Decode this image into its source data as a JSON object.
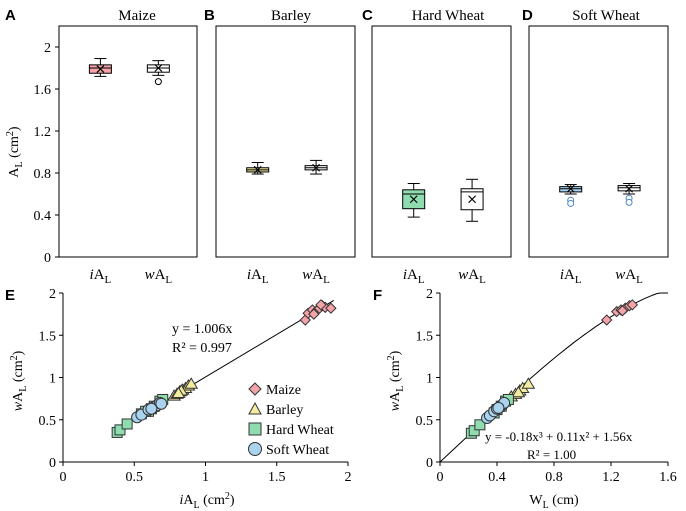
{
  "chart_data": [
    {
      "panel": "A",
      "type": "box",
      "title": "Maize",
      "ylabel": "A_L (cm2)",
      "ylim": [
        0,
        2.2
      ],
      "yticks": [
        "0",
        "0.4",
        "0.8",
        "1.2",
        "1.6",
        "2"
      ],
      "fill": "#f4a3a8",
      "boxes": [
        {
          "label_italic": "i",
          "label": "A",
          "sub": "L",
          "min": 1.72,
          "q1": 1.75,
          "median": 1.8,
          "q3": 1.83,
          "max": 1.89,
          "mean": 1.79,
          "outliers": []
        },
        {
          "label_italic": "w",
          "label": "A",
          "sub": "L",
          "min": 1.73,
          "q1": 1.76,
          "median": 1.8,
          "q3": 1.83,
          "max": 1.87,
          "mean": 1.8,
          "outliers": [
            1.67
          ]
        }
      ]
    },
    {
      "panel": "B",
      "type": "box",
      "title": "Barley",
      "ylim": [
        0,
        2.2
      ],
      "fill": "#f1eca0",
      "boxes": [
        {
          "label_italic": "i",
          "label": "A",
          "sub": "L",
          "min": 0.79,
          "q1": 0.81,
          "median": 0.83,
          "q3": 0.85,
          "max": 0.9,
          "mean": 0.83,
          "outliers": []
        },
        {
          "label_italic": "w",
          "label": "A",
          "sub": "L",
          "min": 0.79,
          "q1": 0.83,
          "median": 0.85,
          "q3": 0.87,
          "max": 0.92,
          "mean": 0.85,
          "outliers": []
        }
      ]
    },
    {
      "panel": "C",
      "type": "box",
      "title": "Hard Wheat",
      "ylim": [
        0,
        2.2
      ],
      "fill": "#8fdcb0",
      "boxes": [
        {
          "label_italic": "i",
          "label": "A",
          "sub": "L",
          "min": 0.38,
          "q1": 0.46,
          "median": 0.6,
          "q3": 0.64,
          "max": 0.7,
          "mean": 0.55,
          "outliers": []
        },
        {
          "label_italic": "w",
          "label": "A",
          "sub": "L",
          "min": 0.34,
          "q1": 0.45,
          "median": 0.62,
          "q3": 0.65,
          "max": 0.74,
          "mean": 0.55,
          "outliers": []
        }
      ]
    },
    {
      "panel": "D",
      "type": "box",
      "title": "Soft Wheat",
      "ylim": [
        0,
        2.2
      ],
      "fill": "#a9d3ef",
      "boxes": [
        {
          "label_italic": "i",
          "label": "A",
          "sub": "L",
          "min": 0.6,
          "q1": 0.62,
          "median": 0.65,
          "q3": 0.67,
          "max": 0.69,
          "mean": 0.65,
          "outliers": [
            0.54,
            0.51
          ]
        },
        {
          "label_italic": "w",
          "label": "A",
          "sub": "L",
          "min": 0.6,
          "q1": 0.63,
          "median": 0.66,
          "q3": 0.68,
          "max": 0.7,
          "mean": 0.65,
          "outliers": [
            0.56,
            0.52
          ]
        }
      ]
    },
    {
      "panel": "E",
      "type": "scatter",
      "xlabel": "iA_L (cm2)",
      "ylabel": "wA_L (cm2)",
      "xlim": [
        0,
        2
      ],
      "ylim": [
        0,
        2
      ],
      "xticks": [
        "0",
        "0.5",
        "1",
        "1.5",
        "2"
      ],
      "yticks": [
        "0",
        "0.5",
        "1",
        "1.5",
        "2"
      ],
      "fit_line": {
        "slope": 1.006,
        "x_range": [
          0.38,
          1.9
        ]
      },
      "equation": "y = 1.006x",
      "r2": "R² = 0.997",
      "series": [
        {
          "name": "Maize",
          "marker": "diamond",
          "color": "#f4a3a8",
          "points": [
            [
              1.7,
              1.68
            ],
            [
              1.72,
              1.76
            ],
            [
              1.75,
              1.8
            ],
            [
              1.78,
              1.79
            ],
            [
              1.8,
              1.82
            ],
            [
              1.82,
              1.85
            ],
            [
              1.84,
              1.83
            ],
            [
              1.88,
              1.82
            ],
            [
              1.76,
              1.75
            ],
            [
              1.81,
              1.86
            ]
          ]
        },
        {
          "name": "Barley",
          "marker": "triangle",
          "color": "#f1eca0",
          "points": [
            [
              0.78,
              0.78
            ],
            [
              0.8,
              0.8
            ],
            [
              0.82,
              0.83
            ],
            [
              0.84,
              0.85
            ],
            [
              0.86,
              0.87
            ],
            [
              0.88,
              0.9
            ],
            [
              0.9,
              0.92
            ],
            [
              0.83,
              0.84
            ],
            [
              0.81,
              0.81
            ]
          ]
        },
        {
          "name": "Hard Wheat",
          "marker": "square",
          "color": "#8fdcb0",
          "points": [
            [
              0.38,
              0.35
            ],
            [
              0.4,
              0.38
            ],
            [
              0.45,
              0.45
            ],
            [
              0.55,
              0.57
            ],
            [
              0.6,
              0.6
            ],
            [
              0.62,
              0.63
            ],
            [
              0.64,
              0.66
            ],
            [
              0.68,
              0.72
            ],
            [
              0.7,
              0.74
            ],
            [
              0.58,
              0.6
            ]
          ]
        },
        {
          "name": "Soft Wheat",
          "marker": "circle",
          "color": "#a9d3ef",
          "points": [
            [
              0.52,
              0.53
            ],
            [
              0.55,
              0.56
            ],
            [
              0.6,
              0.62
            ],
            [
              0.63,
              0.64
            ],
            [
              0.65,
              0.66
            ],
            [
              0.66,
              0.67
            ],
            [
              0.68,
              0.7
            ],
            [
              0.69,
              0.69
            ],
            [
              0.62,
              0.63
            ]
          ]
        }
      ]
    },
    {
      "panel": "F",
      "type": "scatter",
      "xlabel": "W_L (cm)",
      "ylabel": "wA_L (cm2)",
      "xlim": [
        0,
        1.6
      ],
      "ylim": [
        0,
        2
      ],
      "xticks": [
        "0",
        "0.4",
        "0.8",
        "1.2",
        "1.6"
      ],
      "yticks": [
        "0",
        "0.5",
        "1",
        "1.5",
        "2"
      ],
      "fit_curve": {
        "coeffs": [
          -0.18,
          0.11,
          1.56,
          0
        ],
        "x_range": [
          0.0,
          1.6
        ]
      },
      "equation": "y = -0.18x³ + 0.11x² + 1.56x",
      "r2": "R² = 1.00",
      "series": [
        {
          "name": "Maize",
          "marker": "diamond",
          "color": "#f4a3a8",
          "points": [
            [
              1.17,
              1.68
            ],
            [
              1.24,
              1.78
            ],
            [
              1.27,
              1.8
            ],
            [
              1.3,
              1.82
            ],
            [
              1.33,
              1.85
            ],
            [
              1.35,
              1.86
            ],
            [
              1.28,
              1.79
            ]
          ]
        },
        {
          "name": "Barley",
          "marker": "triangle",
          "color": "#f1eca0",
          "points": [
            [
              0.5,
              0.77
            ],
            [
              0.53,
              0.8
            ],
            [
              0.56,
              0.84
            ],
            [
              0.58,
              0.87
            ],
            [
              0.62,
              0.92
            ],
            [
              0.55,
              0.82
            ]
          ]
        },
        {
          "name": "Hard Wheat",
          "marker": "square",
          "color": "#8fdcb0",
          "points": [
            [
              0.22,
              0.34
            ],
            [
              0.24,
              0.37
            ],
            [
              0.28,
              0.44
            ],
            [
              0.38,
              0.58
            ],
            [
              0.4,
              0.62
            ],
            [
              0.43,
              0.66
            ],
            [
              0.46,
              0.72
            ],
            [
              0.48,
              0.74
            ]
          ]
        },
        {
          "name": "Soft Wheat",
          "marker": "circle",
          "color": "#a9d3ef",
          "points": [
            [
              0.33,
              0.52
            ],
            [
              0.35,
              0.55
            ],
            [
              0.38,
              0.6
            ],
            [
              0.4,
              0.63
            ],
            [
              0.42,
              0.65
            ],
            [
              0.44,
              0.68
            ],
            [
              0.45,
              0.7
            ],
            [
              0.41,
              0.64
            ]
          ]
        }
      ]
    }
  ],
  "legend": {
    "items": [
      {
        "name": "Maize",
        "marker": "diamond",
        "color": "#f4a3a8"
      },
      {
        "name": "Barley",
        "marker": "triangle",
        "color": "#f1eca0"
      },
      {
        "name": "Hard Wheat",
        "marker": "square",
        "color": "#8fdcb0"
      },
      {
        "name": "Soft Wheat",
        "marker": "circle",
        "color": "#a9d3ef"
      }
    ]
  },
  "labels": {
    "panel_letters": [
      "A",
      "B",
      "C",
      "D",
      "E",
      "F"
    ],
    "ylabel_A_main": "A",
    "ylabel_A_sub": "L",
    "ylabel_A_unit": " (cm",
    "ylabel_A_sup": "2",
    "ylabel_A_close": ")",
    "ylabel_EF_italic": "w",
    "ylabel_EF_main": "A",
    "ylabel_EF_sub": "L",
    "ylabel_EF_unit": " (cm",
    "ylabel_EF_sup": "2",
    "ylabel_EF_close": ")",
    "xlabel_E_italic": "i",
    "xlabel_E_main": "A",
    "xlabel_E_sub": "L",
    "xlabel_E_unit": " (cm",
    "xlabel_E_sup": "2",
    "xlabel_E_close": ")",
    "xlabel_F_main": "W",
    "xlabel_F_sub": "L",
    "xlabel_F_unit": " (cm)"
  },
  "colors": {
    "axis": "#000000",
    "outlier_blue": "#4a84c4"
  }
}
